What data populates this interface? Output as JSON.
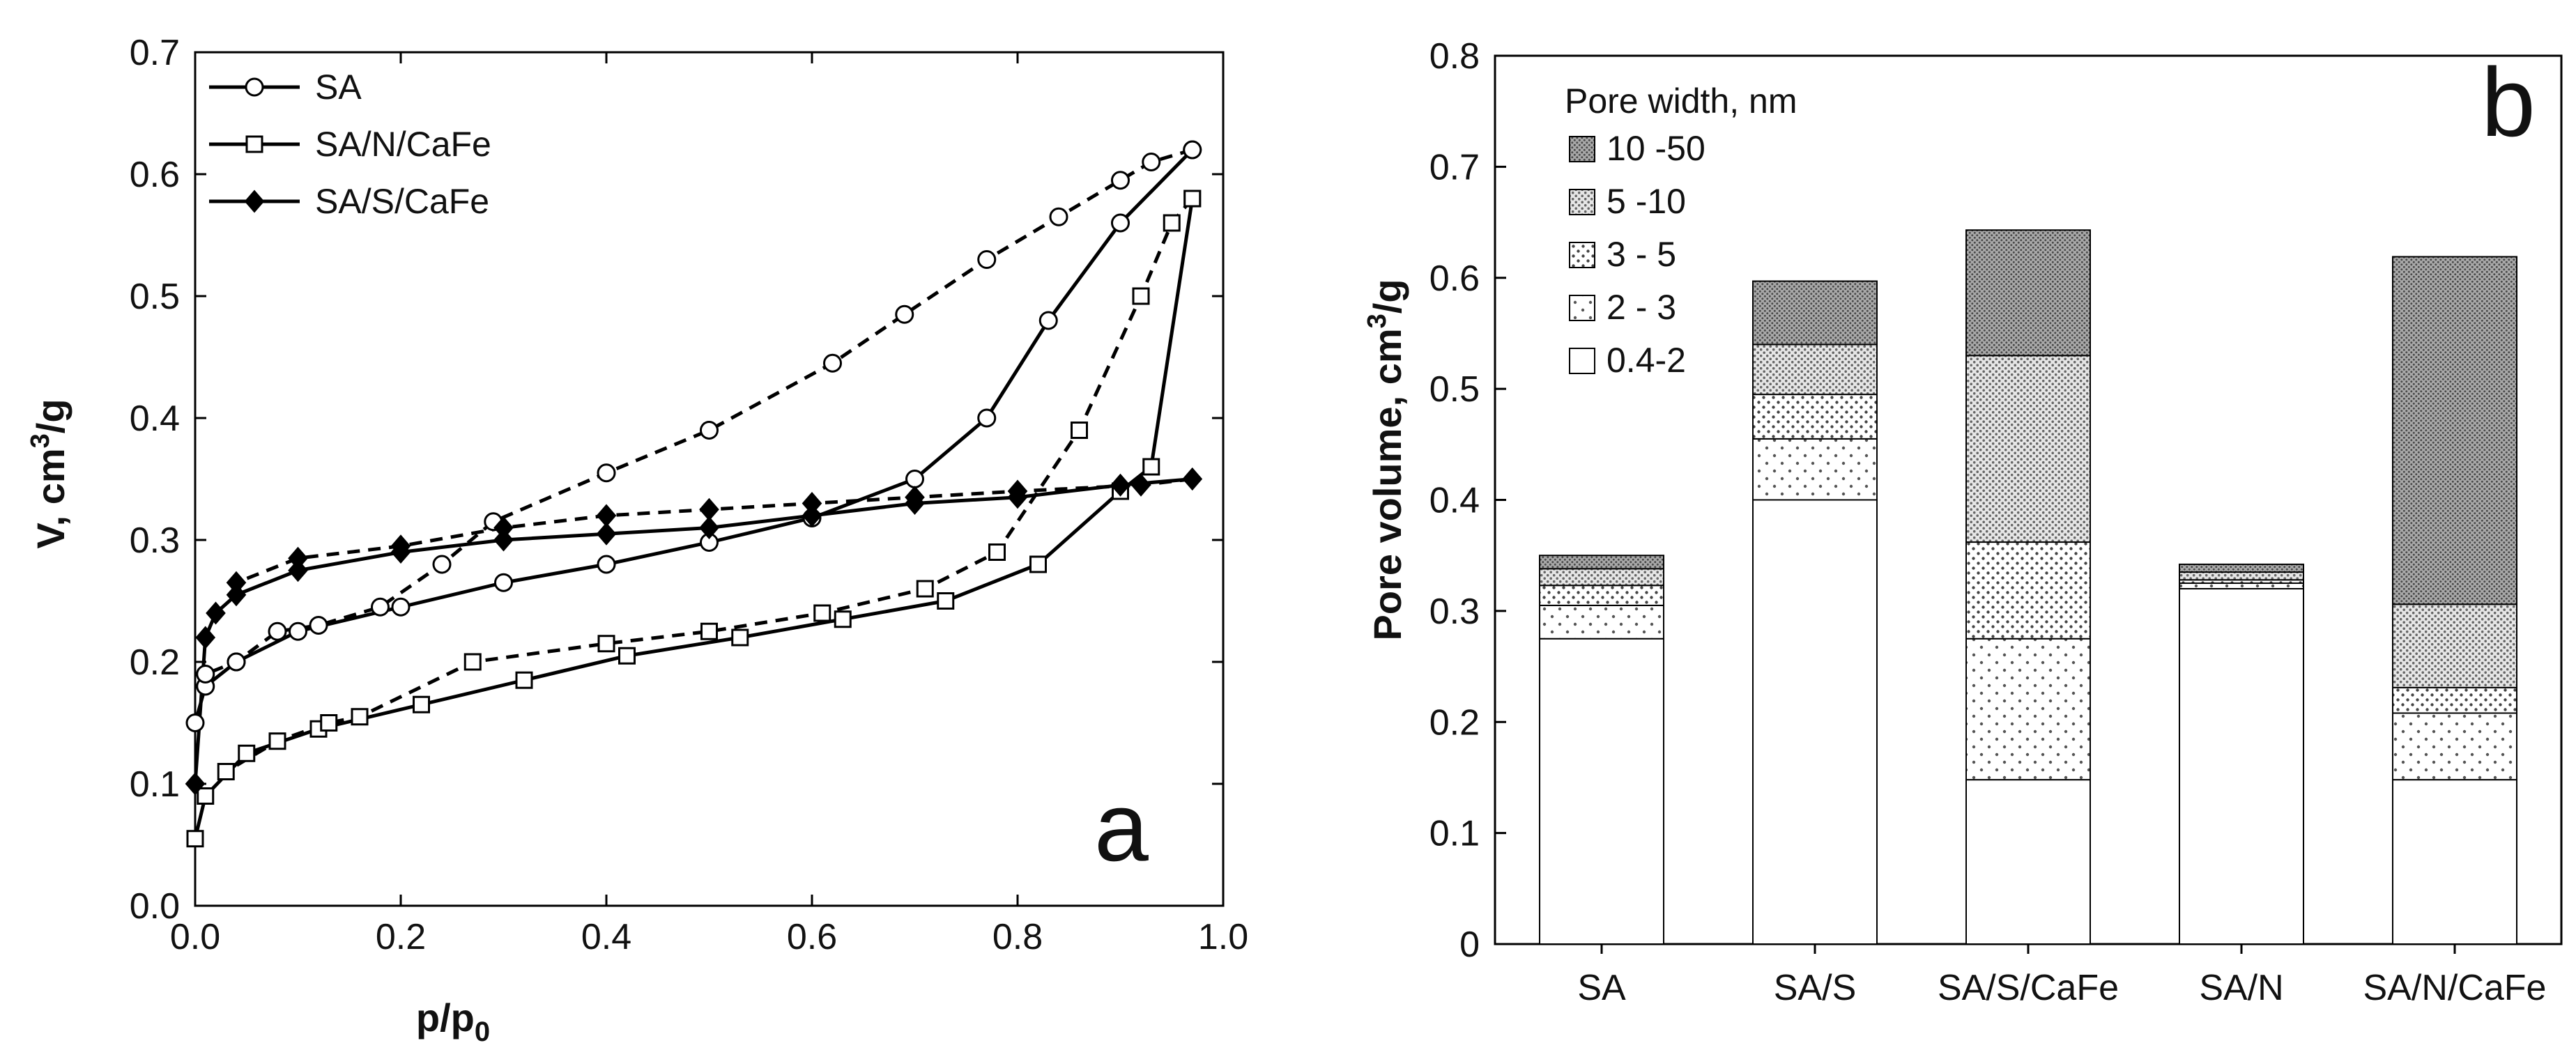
{
  "chart_data": [
    {
      "type": "line",
      "panel_label": "a",
      "xlabel_base": "p/p",
      "xlabel_sub": "0",
      "ylabel_pre": "V, cm",
      "ylabel_sup": "3",
      "ylabel_post": "/g",
      "xlim": [
        0.0,
        1.0
      ],
      "ylim": [
        0.0,
        0.7
      ],
      "xticks": [
        "0.0",
        "0.2",
        "0.4",
        "0.6",
        "0.8",
        "1.0"
      ],
      "yticks": [
        "0.0",
        "0.1",
        "0.2",
        "0.3",
        "0.4",
        "0.5",
        "0.6",
        "0.7"
      ],
      "series": [
        {
          "name": "SA",
          "marker": "circle",
          "adsorption": {
            "x": [
              0.0,
              0.01,
              0.04,
              0.1,
              0.2,
              0.3,
              0.4,
              0.5,
              0.6,
              0.7,
              0.77,
              0.83,
              0.9,
              0.97
            ],
            "y": [
              0.15,
              0.18,
              0.2,
              0.225,
              0.245,
              0.265,
              0.28,
              0.298,
              0.318,
              0.35,
              0.4,
              0.48,
              0.56,
              0.62
            ]
          },
          "desorption": {
            "x": [
              0.97,
              0.93,
              0.9,
              0.84,
              0.77,
              0.69,
              0.62,
              0.5,
              0.4,
              0.29,
              0.24,
              0.18,
              0.12,
              0.08,
              0.04,
              0.01
            ],
            "y": [
              0.62,
              0.61,
              0.595,
              0.565,
              0.53,
              0.485,
              0.445,
              0.39,
              0.355,
              0.315,
              0.28,
              0.245,
              0.23,
              0.225,
              0.2,
              0.19
            ]
          }
        },
        {
          "name": "SA/N/CaFe",
          "marker": "square",
          "adsorption": {
            "x": [
              0.0,
              0.01,
              0.05,
              0.12,
              0.22,
              0.32,
              0.42,
              0.53,
              0.63,
              0.73,
              0.82,
              0.9,
              0.93,
              0.97
            ],
            "y": [
              0.055,
              0.09,
              0.125,
              0.145,
              0.165,
              0.185,
              0.205,
              0.22,
              0.235,
              0.25,
              0.28,
              0.34,
              0.36,
              0.58
            ]
          },
          "desorption": {
            "x": [
              0.97,
              0.95,
              0.92,
              0.86,
              0.78,
              0.71,
              0.61,
              0.5,
              0.4,
              0.27,
              0.16,
              0.13,
              0.08,
              0.03
            ],
            "y": [
              0.58,
              0.56,
              0.5,
              0.39,
              0.29,
              0.26,
              0.24,
              0.225,
              0.215,
              0.2,
              0.155,
              0.15,
              0.135,
              0.11
            ]
          }
        },
        {
          "name": "SA/S/CaFe",
          "marker": "diamond",
          "adsorption": {
            "x": [
              0.0,
              0.01,
              0.02,
              0.04,
              0.1,
              0.2,
              0.3,
              0.4,
              0.5,
              0.6,
              0.7,
              0.8,
              0.9,
              0.97
            ],
            "y": [
              0.1,
              0.22,
              0.24,
              0.255,
              0.275,
              0.29,
              0.3,
              0.305,
              0.31,
              0.32,
              0.33,
              0.335,
              0.345,
              0.35
            ]
          },
          "desorption": {
            "x": [
              0.97,
              0.92,
              0.8,
              0.7,
              0.6,
              0.5,
              0.4,
              0.3,
              0.2,
              0.1,
              0.04
            ],
            "y": [
              0.35,
              0.345,
              0.34,
              0.335,
              0.33,
              0.325,
              0.32,
              0.31,
              0.295,
              0.285,
              0.265
            ]
          }
        }
      ]
    },
    {
      "type": "bar",
      "stacked": true,
      "panel_label": "b",
      "ylabel_pre": "Pore volume, cm",
      "ylabel_sup": "3",
      "ylabel_post": "/g",
      "legend_title": "Pore width, nm",
      "ylim": [
        0.0,
        0.8
      ],
      "yticks": [
        "0",
        "0.1",
        "0.2",
        "0.3",
        "0.4",
        "0.5",
        "0.6",
        "0.7",
        "0.8"
      ],
      "categories": [
        "SA",
        "SA/S",
        "SA/S/CaFe",
        "SA/N",
        "SA/N/CaFe"
      ],
      "series": [
        {
          "name": "0.4-2",
          "pattern": "none",
          "values": [
            0.275,
            0.4,
            0.148,
            0.32,
            0.148
          ]
        },
        {
          "name": "2 - 3",
          "pattern": "sparse",
          "values": [
            0.03,
            0.055,
            0.127,
            0.005,
            0.06
          ]
        },
        {
          "name": "3 - 5",
          "pattern": "medium",
          "values": [
            0.018,
            0.04,
            0.087,
            0.003,
            0.023
          ]
        },
        {
          "name": "5 -10",
          "pattern": "dense",
          "values": [
            0.015,
            0.045,
            0.168,
            0.007,
            0.075
          ]
        },
        {
          "name": "10 -50",
          "pattern": "dark",
          "values": [
            0.012,
            0.057,
            0.113,
            0.007,
            0.313
          ]
        }
      ]
    }
  ]
}
